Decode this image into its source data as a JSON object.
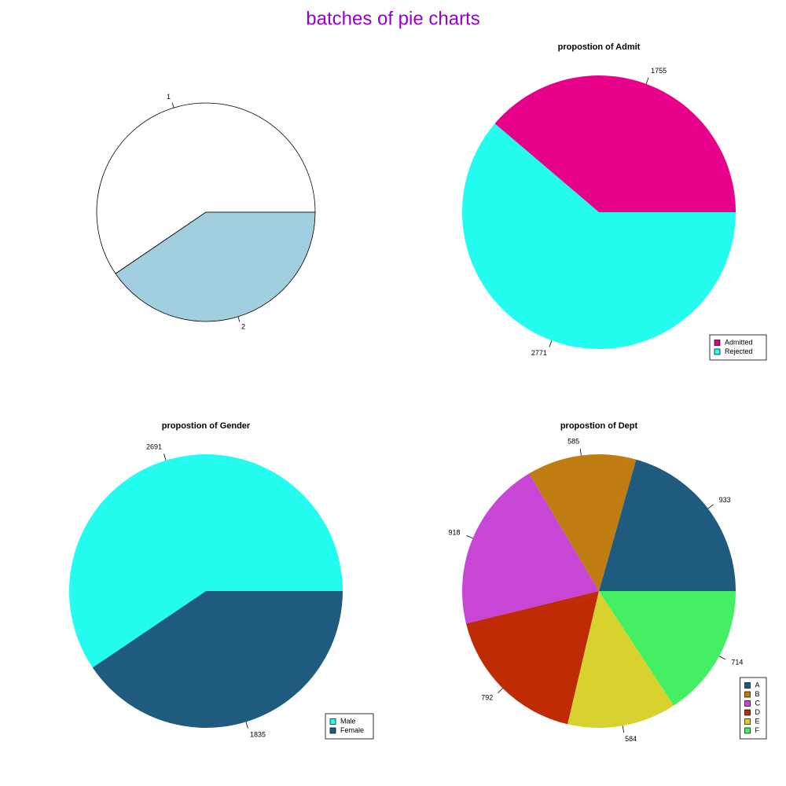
{
  "title": "batches of pie charts",
  "chart_data": [
    {
      "type": "pie",
      "categories": [
        "1",
        "2"
      ],
      "values": [
        59.5,
        40.5
      ],
      "colors": [
        "#ffffff",
        "#a2cfe0"
      ],
      "border": "#000000"
    },
    {
      "type": "pie",
      "title": "propostion of Admit",
      "categories": [
        "Admitted",
        "Rejected"
      ],
      "values": [
        1755,
        2771
      ],
      "colors": [
        "#e6008a",
        "#24fcf0"
      ],
      "legend": "bottomright"
    },
    {
      "type": "pie",
      "title": "propostion of Gender",
      "categories": [
        "Male",
        "Female"
      ],
      "values": [
        2691,
        1835
      ],
      "colors": [
        "#24fcf0",
        "#1f5a7f"
      ],
      "legend": "bottomright"
    },
    {
      "type": "pie",
      "title": "propostion of Dept",
      "categories": [
        "A",
        "B",
        "C",
        "D",
        "E",
        "F"
      ],
      "values": [
        933,
        585,
        918,
        792,
        584,
        714
      ],
      "colors": [
        "#1f5a7f",
        "#bf7c10",
        "#c846d6",
        "#be2b05",
        "#d8d22e",
        "#43f063"
      ],
      "legend": "bottomright"
    }
  ]
}
